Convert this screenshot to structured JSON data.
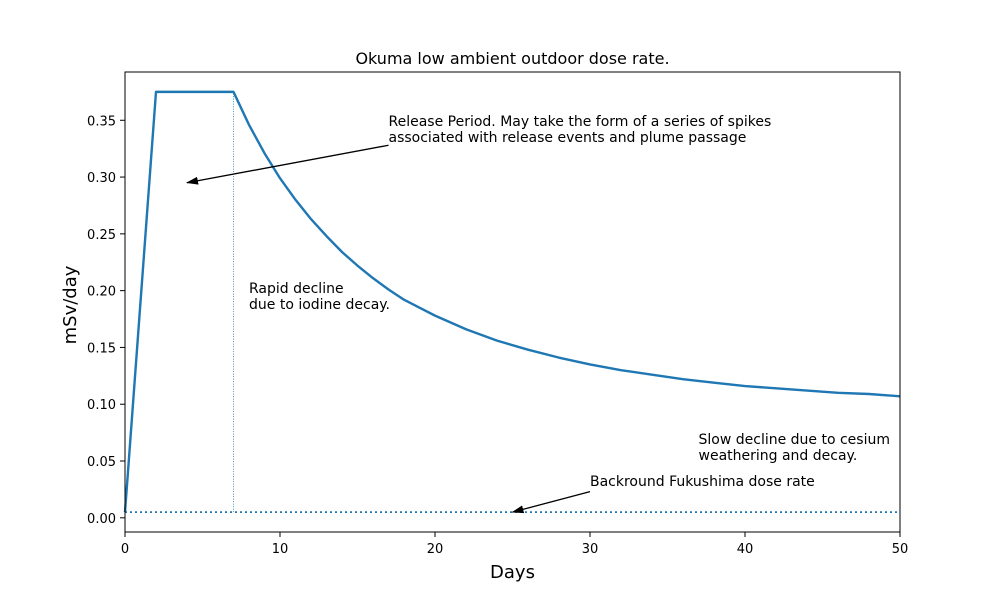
{
  "chart_data": {
    "type": "line",
    "title": "Okuma low ambient outdoor dose rate.",
    "xlabel": "Days",
    "ylabel": "mSv/day",
    "xlim": [
      0,
      50
    ],
    "ylim": [
      -0.0125,
      0.3925
    ],
    "x_ticks": [
      0,
      10,
      20,
      30,
      40,
      50
    ],
    "y_ticks": [
      0.0,
      0.05,
      0.1,
      0.15,
      0.2,
      0.25,
      0.3,
      0.35
    ],
    "grid": false,
    "legend": "none",
    "colors": {
      "series": "#1f77b4",
      "background_line": "#1f77b4"
    },
    "series": [
      {
        "x": [
          0,
          2,
          7,
          8,
          9,
          10,
          11,
          12,
          13,
          14,
          15,
          16,
          17,
          18,
          19,
          20,
          22,
          24,
          26,
          28,
          30,
          32,
          34,
          36,
          38,
          40,
          42,
          44,
          46,
          48,
          50
        ],
        "y": [
          0.005,
          0.375,
          0.375,
          0.346,
          0.321,
          0.299,
          0.28,
          0.263,
          0.248,
          0.234,
          0.222,
          0.211,
          0.201,
          0.192,
          0.185,
          0.178,
          0.166,
          0.156,
          0.148,
          0.141,
          0.135,
          0.13,
          0.126,
          0.122,
          0.119,
          0.116,
          0.114,
          0.112,
          0.11,
          0.109,
          0.107
        ]
      }
    ],
    "background_rate": 0.005,
    "release_end_day": 7,
    "annotations": [
      {
        "id": "release",
        "lines": [
          "Release Period. May take the form of a series of spikes",
          "associated with release events and plume passage"
        ],
        "text_x": 17,
        "text_y": 0.345,
        "arrow_to": [
          4,
          0.295
        ],
        "arrow_from": [
          17,
          0.328
        ]
      },
      {
        "id": "rapid",
        "lines": [
          "Rapid decline",
          "due to iodine decay."
        ],
        "text_x": 8,
        "text_y": 0.198
      },
      {
        "id": "slow",
        "lines": [
          "Slow decline due to cesium",
          "weathering and decay."
        ],
        "text_x": 37,
        "text_y": 0.065
      },
      {
        "id": "background",
        "lines": [
          "Backround Fukushima dose rate"
        ],
        "text_x": 30,
        "text_y": 0.028,
        "arrow_to": [
          25,
          0.005
        ],
        "arrow_from": [
          30,
          0.023
        ]
      }
    ]
  }
}
